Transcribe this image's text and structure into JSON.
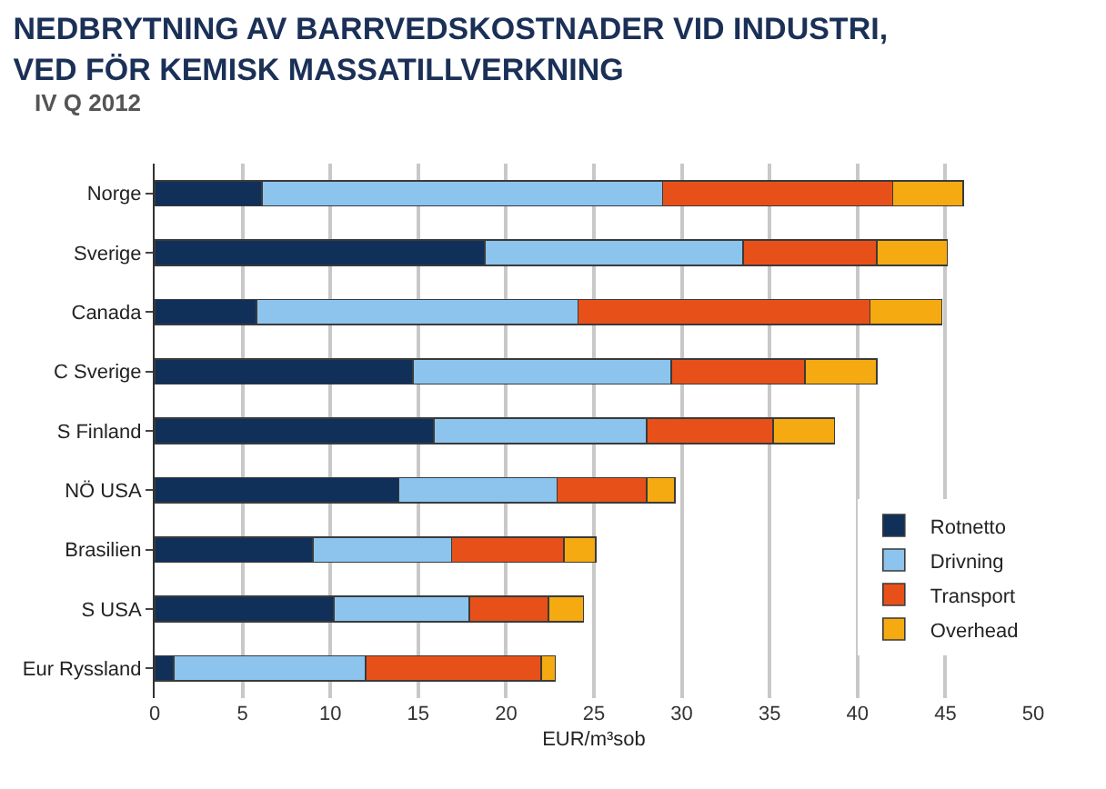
{
  "chart_data": {
    "type": "bar",
    "orientation": "horizontal",
    "stacked": true,
    "title": "NEDBRYTNING AV BARRVEDSKOSTNADER VID INDUSTRI,\nVED FÖR KEMISK MASSATILLVERKNING",
    "subtitle": "IV Q 2012",
    "xlabel": "EUR/m³sob",
    "categories": [
      "Norge",
      "Sverige",
      "Canada",
      "C Sverige",
      "S Finland",
      "NÖ USA",
      "Brasilien",
      "S USA",
      "Eur Ryssland"
    ],
    "series": [
      {
        "name": "Rotnetto",
        "color": "#10305a",
        "values": [
          6.1,
          18.8,
          5.8,
          14.7,
          15.9,
          13.9,
          9.0,
          10.2,
          1.1
        ]
      },
      {
        "name": "Drivning",
        "color": "#8cc4ee",
        "values": [
          22.8,
          14.7,
          18.3,
          14.7,
          12.1,
          9.0,
          7.9,
          7.7,
          10.9
        ]
      },
      {
        "name": "Transport",
        "color": "#e8501a",
        "values": [
          13.1,
          7.6,
          16.6,
          7.6,
          7.2,
          5.1,
          6.4,
          4.5,
          10.0
        ]
      },
      {
        "name": "Overhead",
        "color": "#f4aa10",
        "values": [
          4.0,
          4.0,
          4.1,
          4.1,
          3.5,
          1.6,
          1.8,
          2.0,
          0.8
        ]
      }
    ],
    "xlim": [
      0,
      50
    ],
    "xticks": [
      0,
      5,
      10,
      15,
      20,
      25,
      30,
      35,
      40,
      45,
      50
    ],
    "grid": "x",
    "legend": "bottom right"
  }
}
